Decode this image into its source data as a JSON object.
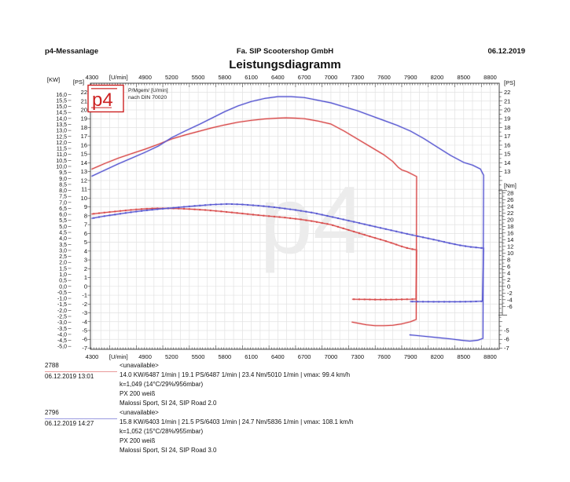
{
  "header": {
    "app": "p4-Messanlage",
    "company": "Fa. SIP Scootershop GmbH",
    "date": "06.12.2019",
    "title": "Leistungsdiagramm"
  },
  "logo": {
    "text": "p4",
    "note_line1": "P/Mgem/ [U/min]",
    "note_line2": "nach DIN 70020"
  },
  "watermark": "p4",
  "chart_data": {
    "type": "line",
    "title": "Leistungsdiagramm",
    "x_axis": {
      "unit": "[U/min]",
      "min": 4282,
      "max": 8902,
      "label_start": 4300,
      "label_end": 8800,
      "label_step": 300,
      "unit_replaces_value": 4600,
      "minor_tick_step": 30,
      "grid_step": 100
    },
    "y_axis_left": {
      "kw": {
        "unit": "[KW]",
        "min": -5,
        "max": 16,
        "step": 0.5
      },
      "ps": {
        "unit": "[PS]",
        "min": -7,
        "max": 22,
        "step": 1
      }
    },
    "y_axis_right": {
      "ps": {
        "unit": "[PS]",
        "labels_top": [
          22,
          21,
          20,
          19,
          18,
          17,
          16,
          15,
          14,
          13
        ],
        "labels_bottom": [
          -5,
          -6,
          -7
        ]
      },
      "nm": {
        "unit": "[Nm]",
        "min": -6,
        "max": 28,
        "label_step": 2,
        "minor_step": 1
      }
    },
    "grid": true,
    "series": [
      {
        "run": "2788",
        "quantity": "power",
        "axis": "ps",
        "color": "#d94f4f",
        "markers": false,
        "main": [
          [
            4300,
            13.3
          ],
          [
            4450,
            13.95
          ],
          [
            4600,
            14.55
          ],
          [
            4750,
            15.05
          ],
          [
            4900,
            15.55
          ],
          [
            5050,
            16.1
          ],
          [
            5200,
            16.7
          ],
          [
            5350,
            17.15
          ],
          [
            5500,
            17.55
          ],
          [
            5650,
            17.95
          ],
          [
            5800,
            18.3
          ],
          [
            5950,
            18.6
          ],
          [
            6100,
            18.82
          ],
          [
            6250,
            18.98
          ],
          [
            6400,
            19.07
          ],
          [
            6490,
            19.1
          ],
          [
            6600,
            19.07
          ],
          [
            6700,
            19.0
          ],
          [
            6850,
            18.75
          ],
          [
            7000,
            18.4
          ],
          [
            7150,
            17.6
          ],
          [
            7300,
            16.7
          ],
          [
            7450,
            15.8
          ],
          [
            7600,
            14.9
          ],
          [
            7700,
            14.15
          ],
          [
            7760,
            13.5
          ],
          [
            7800,
            13.2
          ],
          [
            7860,
            13.0
          ],
          [
            7920,
            12.7
          ],
          [
            7968,
            12.45
          ]
        ],
        "decel": [
          [
            7964,
            -3.75
          ],
          [
            7900,
            -4.0
          ],
          [
            7800,
            -4.25
          ],
          [
            7700,
            -4.4
          ],
          [
            7600,
            -4.45
          ],
          [
            7500,
            -4.45
          ],
          [
            7400,
            -4.35
          ],
          [
            7320,
            -4.2
          ],
          [
            7240,
            -4.05
          ]
        ]
      },
      {
        "run": "2788",
        "quantity": "torque",
        "axis": "nm",
        "color": "#d94f4f",
        "markers": true,
        "main": [
          [
            4300,
            21.7
          ],
          [
            4450,
            22.15
          ],
          [
            4600,
            22.55
          ],
          [
            4750,
            22.95
          ],
          [
            4900,
            23.25
          ],
          [
            5010,
            23.4
          ],
          [
            5150,
            23.4
          ],
          [
            5300,
            23.3
          ],
          [
            5450,
            23.1
          ],
          [
            5600,
            22.85
          ],
          [
            5750,
            22.5
          ],
          [
            5900,
            22.1
          ],
          [
            6050,
            21.7
          ],
          [
            6200,
            21.3
          ],
          [
            6350,
            20.95
          ],
          [
            6490,
            20.6
          ],
          [
            6650,
            20.1
          ],
          [
            6800,
            19.5
          ],
          [
            7000,
            18.5
          ],
          [
            7150,
            17.3
          ],
          [
            7300,
            16.1
          ],
          [
            7450,
            14.9
          ],
          [
            7600,
            13.75
          ],
          [
            7700,
            12.9
          ],
          [
            7780,
            12.15
          ],
          [
            7860,
            11.5
          ],
          [
            7920,
            11.15
          ],
          [
            7968,
            10.95
          ]
        ],
        "decel": [
          [
            7962,
            -3.8
          ],
          [
            7900,
            -3.85
          ],
          [
            7800,
            -3.9
          ],
          [
            7700,
            -3.95
          ],
          [
            7600,
            -3.95
          ],
          [
            7500,
            -3.95
          ],
          [
            7400,
            -3.9
          ],
          [
            7300,
            -3.88
          ],
          [
            7245,
            -3.85
          ]
        ]
      },
      {
        "run": "2796",
        "quantity": "power",
        "axis": "ps",
        "color": "#5a5ad2",
        "markers": false,
        "main": [
          [
            4300,
            12.5
          ],
          [
            4450,
            13.2
          ],
          [
            4600,
            13.9
          ],
          [
            4750,
            14.55
          ],
          [
            4900,
            15.2
          ],
          [
            5050,
            15.9
          ],
          [
            5200,
            16.85
          ],
          [
            5350,
            17.6
          ],
          [
            5500,
            18.3
          ],
          [
            5650,
            19.05
          ],
          [
            5800,
            19.8
          ],
          [
            5950,
            20.45
          ],
          [
            6100,
            20.95
          ],
          [
            6250,
            21.3
          ],
          [
            6400,
            21.5
          ],
          [
            6550,
            21.5
          ],
          [
            6700,
            21.4
          ],
          [
            6850,
            21.1
          ],
          [
            7000,
            20.8
          ],
          [
            7150,
            20.35
          ],
          [
            7300,
            19.9
          ],
          [
            7450,
            19.35
          ],
          [
            7600,
            18.8
          ],
          [
            7750,
            18.25
          ],
          [
            7900,
            17.6
          ],
          [
            8050,
            16.75
          ],
          [
            8200,
            15.8
          ],
          [
            8350,
            14.85
          ],
          [
            8500,
            14.05
          ],
          [
            8600,
            13.75
          ],
          [
            8690,
            13.3
          ],
          [
            8725,
            12.6
          ]
        ],
        "decel": [
          [
            8718,
            -5.9
          ],
          [
            8660,
            -6.1
          ],
          [
            8570,
            -6.2
          ],
          [
            8470,
            -6.1
          ],
          [
            8350,
            -5.95
          ],
          [
            8200,
            -5.8
          ],
          [
            8050,
            -5.65
          ],
          [
            7950,
            -5.55
          ],
          [
            7893,
            -5.5
          ]
        ]
      },
      {
        "run": "2796",
        "quantity": "torque",
        "axis": "nm",
        "color": "#5a5ad2",
        "markers": true,
        "main": [
          [
            4300,
            20.4
          ],
          [
            4450,
            21.1
          ],
          [
            4600,
            21.7
          ],
          [
            4750,
            22.25
          ],
          [
            4900,
            22.75
          ],
          [
            5050,
            23.15
          ],
          [
            5200,
            23.5
          ],
          [
            5350,
            23.85
          ],
          [
            5500,
            24.2
          ],
          [
            5650,
            24.5
          ],
          [
            5836,
            24.7
          ],
          [
            6000,
            24.55
          ],
          [
            6200,
            24.15
          ],
          [
            6400,
            23.6
          ],
          [
            6600,
            22.9
          ],
          [
            6800,
            22.05
          ],
          [
            7000,
            20.9
          ],
          [
            7150,
            20.0
          ],
          [
            7300,
            19.1
          ],
          [
            7450,
            18.2
          ],
          [
            7600,
            17.3
          ],
          [
            7750,
            16.4
          ],
          [
            7900,
            15.5
          ],
          [
            8050,
            14.65
          ],
          [
            8200,
            13.8
          ],
          [
            8350,
            12.9
          ],
          [
            8460,
            12.3
          ],
          [
            8570,
            11.85
          ],
          [
            8680,
            11.55
          ],
          [
            8725,
            11.45
          ]
        ],
        "decel": [
          [
            8712,
            -4.45
          ],
          [
            8600,
            -4.55
          ],
          [
            8450,
            -4.6
          ],
          [
            8300,
            -4.6
          ],
          [
            8150,
            -4.6
          ],
          [
            8000,
            -4.58
          ],
          [
            7900,
            -4.55
          ]
        ]
      }
    ]
  },
  "runs": [
    {
      "id": "2788",
      "datetime": "06.12.2019  13:01",
      "name": "<unavailable>",
      "stats": "14.0 KW/6487 1/min   |   19.1 PS/6487 1/min   |   23.4 Nm/5010 1/min | vmax: 99.4 km/h",
      "correction": "k=1,049 (14°C/29%/956mbar)",
      "vehicle": "PX 200 weiß",
      "setup": "Malossi Sport, SI 24, SIP Road 2.0",
      "color": "#e89a9a"
    },
    {
      "id": "2796",
      "datetime": "06.12.2019  14:27",
      "name": "<unavailable>",
      "stats": "15.8 KW/6403 1/min   |   21.5 PS/6403 1/min   |   24.7 Nm/5836 1/min | vmax: 108.1 km/h",
      "correction": "k=1,052 (15°C/28%/955mbar)",
      "vehicle": "PX 200 weiß",
      "setup": "Malossi Sport, SI 24, SIP Road 3.0",
      "color": "#9a9ae0"
    }
  ]
}
